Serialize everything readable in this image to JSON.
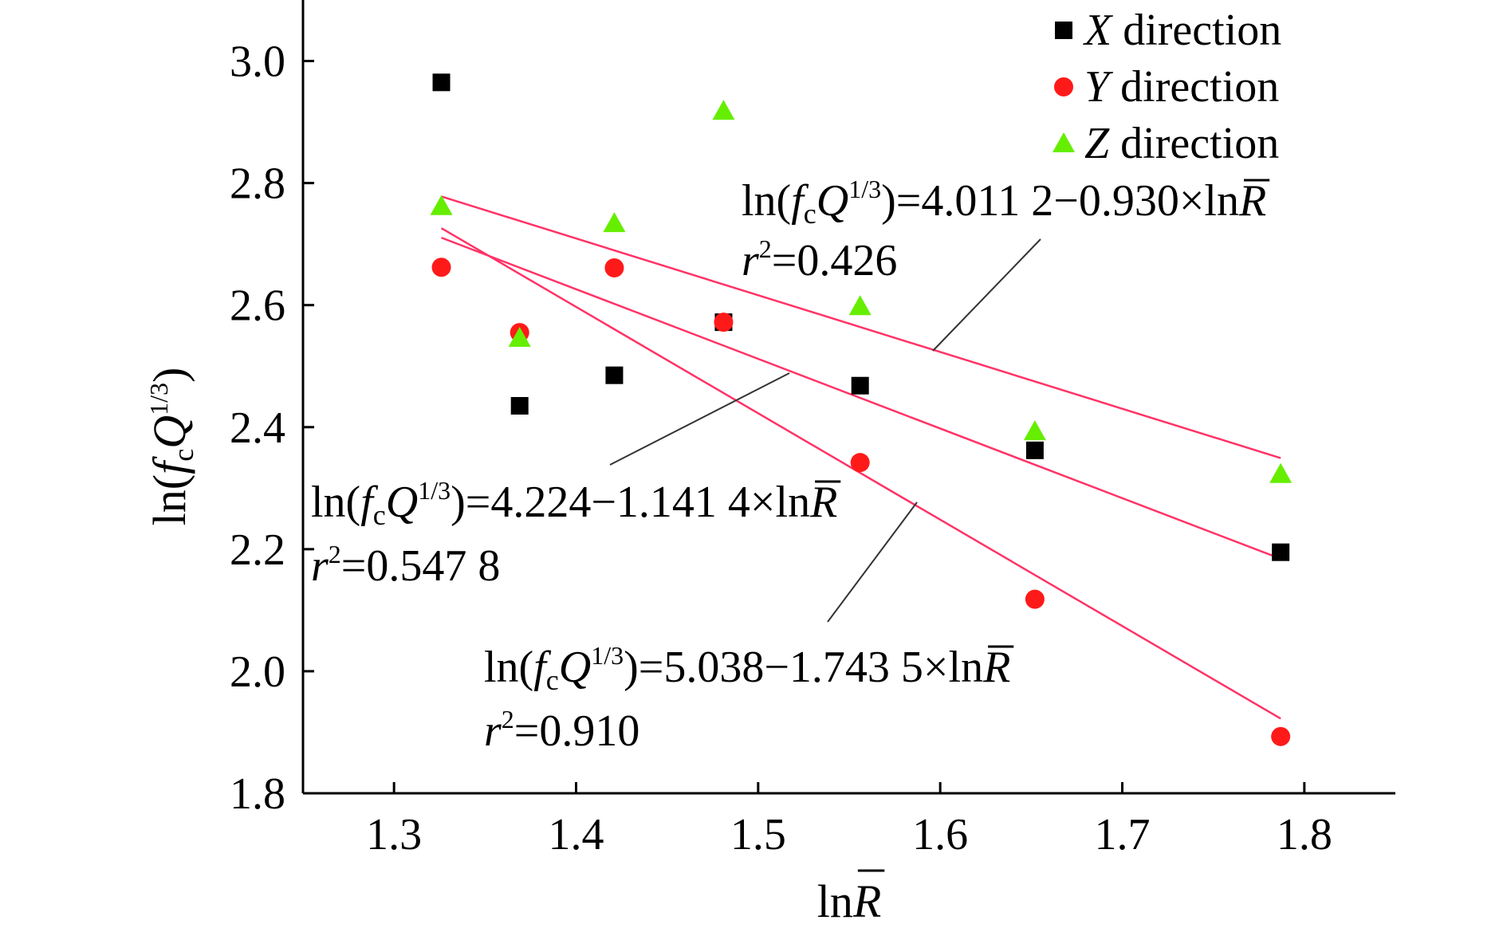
{
  "chart_data": {
    "type": "scatter",
    "xlabel": "lnR̄",
    "ylabel": "ln(fcQ1/3)",
    "xlim": [
      1.25,
      1.85
    ],
    "ylim": [
      1.8,
      3.1
    ],
    "x_ticks": [
      "1.3",
      "1.4",
      "1.5",
      "1.6",
      "1.7",
      "1.8"
    ],
    "y_ticks": [
      "1.8",
      "2.0",
      "2.2",
      "2.4",
      "2.6",
      "2.8",
      "3.0"
    ],
    "legend": {
      "position": "top-right",
      "entries": [
        {
          "italic": "X",
          "text": " direction",
          "marker": "square",
          "color": "#000000"
        },
        {
          "italic": "Y",
          "text": " direction",
          "marker": "circle",
          "color": "#ff1a1a"
        },
        {
          "italic": "Z",
          "text": " direction",
          "marker": "triangle",
          "color": "#66ee00"
        }
      ]
    },
    "series": [
      {
        "name": "X direction",
        "marker": "square",
        "color": "#000000",
        "x": [
          1.326,
          1.369,
          1.421,
          1.481,
          1.556,
          1.652,
          1.787
        ],
        "y": [
          2.965,
          2.435,
          2.485,
          2.572,
          2.468,
          2.362,
          2.195
        ]
      },
      {
        "name": "Y direction",
        "marker": "circle",
        "color": "#ff1a1a",
        "x": [
          1.326,
          1.369,
          1.421,
          1.481,
          1.556,
          1.652,
          1.787
        ],
        "y": [
          2.662,
          2.555,
          2.661,
          2.572,
          2.342,
          2.118,
          1.893
        ]
      },
      {
        "name": "Z direction",
        "marker": "triangle",
        "color": "#66ee00",
        "x": [
          1.326,
          1.369,
          1.421,
          1.481,
          1.556,
          1.652,
          1.787
        ],
        "y": [
          2.762,
          2.546,
          2.734,
          2.918,
          2.598,
          2.393,
          2.323
        ]
      }
    ],
    "fit_lines": [
      {
        "intercept": 4.0112,
        "slope": -0.93,
        "x": [
          1.326,
          1.787
        ],
        "color": "#ff3366"
      },
      {
        "intercept": 4.224,
        "slope": -1.1414,
        "x": [
          1.326,
          1.787
        ],
        "color": "#ff3366"
      },
      {
        "intercept": 5.038,
        "slope": -1.7435,
        "x": [
          1.326,
          1.787
        ],
        "color": "#ff3366"
      }
    ],
    "annotations": [
      {
        "eq_prefix": "ln(",
        "f": "f",
        "c": "c",
        "Q": "Q",
        "exp": "1/3",
        "eq_rest": ")=4.011 2−0.930×ln",
        "R": "R",
        "bar": "¯",
        "r": "r",
        "r_exp": "2",
        "r_val": "=0.426"
      },
      {
        "eq_prefix": "ln(",
        "f": "f",
        "c": "c",
        "Q": "Q",
        "exp": "1/3",
        "eq_rest": ")=4.224−1.141 4×ln",
        "R": "R",
        "bar": "¯",
        "r": "r",
        "r_exp": "2",
        "r_val": "=0.547 8"
      },
      {
        "eq_prefix": "ln(",
        "f": "f",
        "c": "c",
        "Q": "Q",
        "exp": "1/3",
        "eq_rest": ")=5.038−1.743 5×ln",
        "R": "R",
        "bar": "¯",
        "r": "r",
        "r_exp": "2",
        "r_val": "=0.910"
      }
    ],
    "axis_labels": {
      "x_prefix": "ln",
      "x_R": "R",
      "x_bar": "¯",
      "y_prefix": "ln(",
      "y_f": "f",
      "y_c": "c",
      "y_Q": "Q",
      "y_exp": "1/3",
      "y_close": ")"
    },
    "grid": false
  }
}
